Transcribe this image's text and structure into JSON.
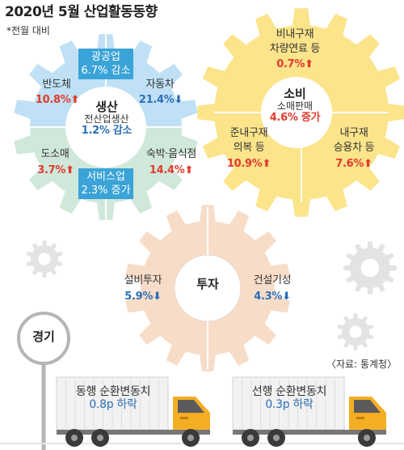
{
  "title": "2020년 5월 산업활동동향",
  "note": "*전월 대비",
  "source": "〈자료: 통계청〉",
  "arrow_up": "⬆",
  "arrow_down": "⬇",
  "colors": {
    "production_top": "#bfe0f5",
    "production_bottom": "#cfe8d9",
    "consumption": "#fbe48a",
    "investment": "#f7dcc8",
    "gray_gear": "#e3e3e3",
    "truck_yellow": "#f3ae23",
    "up_red": "#e23a2d",
    "down_blue": "#2d6fb7",
    "label_box_blue": "#3aa3d7"
  },
  "production": {
    "hub_title": "생산",
    "hub_label": "전산업생산",
    "hub_value": "1.2% 감소",
    "mining": {
      "label": "광공업",
      "value": "6.7% 감소"
    },
    "service": {
      "label": "서비스업",
      "value": "2.3% 증가"
    },
    "semiconductor": {
      "label": "반도체",
      "value": "10.8%"
    },
    "automobile": {
      "label": "자동차",
      "value": "21.4%"
    },
    "wholesale": {
      "label": "도소매",
      "value": "3.7%"
    },
    "lodging": {
      "label": "숙박·음식점",
      "value": "14.4%"
    }
  },
  "consumption": {
    "hub_title": "소비",
    "hub_label": "소매판매",
    "hub_value": "4.6% 증가",
    "nondurable": {
      "label_1": "비내구재",
      "label_2": "차량연료 등",
      "value": "0.7%"
    },
    "semidurable": {
      "label_1": "준내구재",
      "label_2": "의복 등",
      "value": "10.9%"
    },
    "durable": {
      "label_1": "내구재",
      "label_2": "승용차 등",
      "value": "7.6%"
    }
  },
  "investment": {
    "hub_title": "투자",
    "facility": {
      "label": "설비투자",
      "value": "5.9%"
    },
    "construction": {
      "label": "건설기성",
      "value": "4.3%"
    }
  },
  "economy": {
    "sign_label": "경기"
  },
  "trucks": {
    "coincident": {
      "label": "동행 순환변동치",
      "value": "0.8p 하락"
    },
    "leading": {
      "label": "선행 순환변동치",
      "value": "0.3p 하락"
    }
  }
}
